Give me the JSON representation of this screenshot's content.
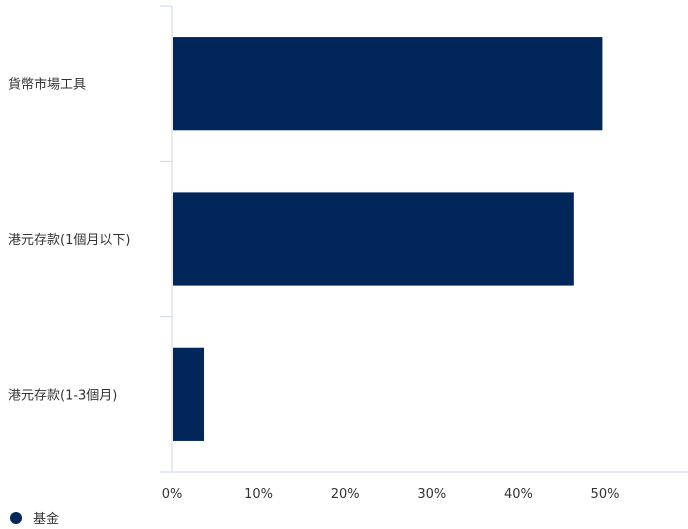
{
  "chart_data": {
    "type": "bar",
    "orientation": "horizontal",
    "categories": [
      "貨幣市場工具",
      "港元存款(1個月以下)",
      "港元存款(1-3個月)"
    ],
    "series": [
      {
        "name": "基金",
        "values": [
          49.7,
          46.4,
          3.7
        ],
        "color": "#00265a"
      }
    ],
    "xlim": [
      0,
      59
    ],
    "xticks": [
      0,
      10,
      20,
      30,
      40,
      50
    ],
    "xtick_labels": [
      "0%",
      "10%",
      "20%",
      "30%",
      "40%",
      "50%"
    ],
    "grid": false,
    "legend": {
      "position": "bottom-left",
      "label": "基金"
    }
  }
}
